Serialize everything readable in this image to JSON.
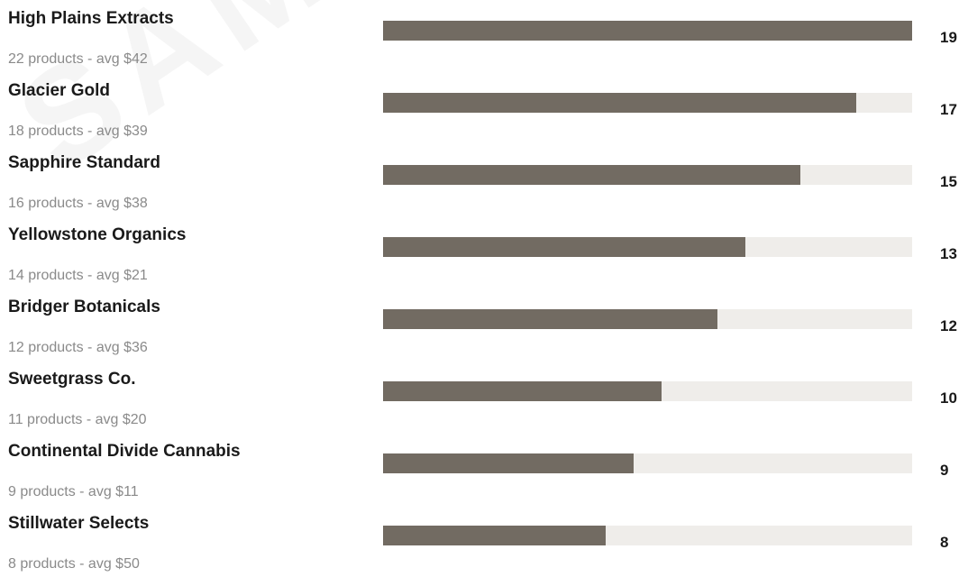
{
  "watermark": "SAMPLE",
  "colors": {
    "bar_fill": "#726b62",
    "bar_track": "#efedea",
    "name_text": "#1a1a1a",
    "meta_text": "#8a8a8a"
  },
  "chart_data": {
    "type": "bar",
    "orientation": "horizontal",
    "title": "",
    "xlabel": "",
    "ylabel": "",
    "xlim": [
      0,
      19
    ],
    "grid": false,
    "categories": [
      "High Plains Extracts",
      "Glacier Gold",
      "Sapphire Standard",
      "Yellowstone Organics",
      "Bridger Botanicals",
      "Sweetgrass Co.",
      "Continental Divide Cannabis",
      "Stillwater Selects"
    ],
    "values": [
      19,
      17,
      15,
      13,
      12,
      10,
      9,
      8
    ],
    "value_labels": [
      "19",
      "17",
      "15",
      "13",
      "12",
      "10",
      "9",
      "8"
    ],
    "sublabels": [
      "22 products - avg $42",
      "18 products - avg $39",
      "16 products - avg $38",
      "14 products - avg $21",
      "12 products - avg $36",
      "11 products - avg $20",
      "9 products - avg $11",
      "8 products - avg $50"
    ]
  }
}
